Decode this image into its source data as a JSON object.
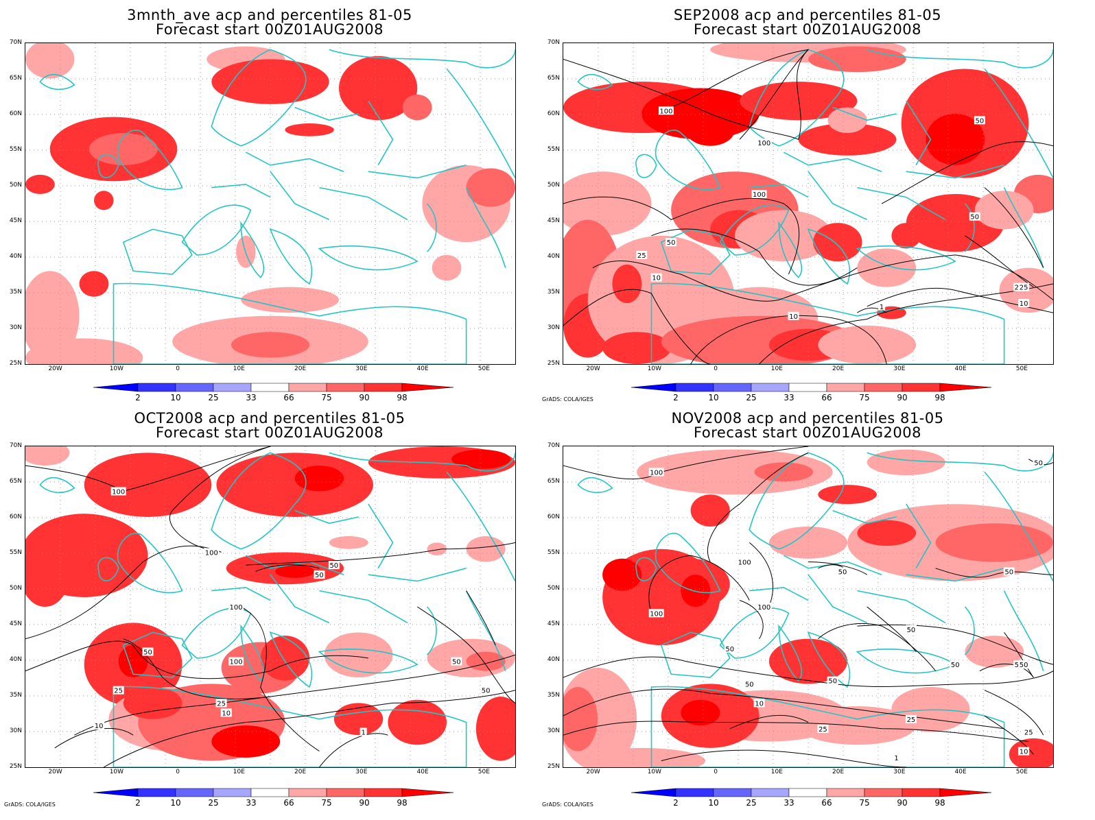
{
  "panels": [
    {
      "id": "p1",
      "title1": "3mnth_ave acp and percentiles 81-05",
      "title2": "Forecast start 00Z01AUG2008",
      "show_grads": false,
      "contours": false
    },
    {
      "id": "p2",
      "title1": "SEP2008 acp and percentiles 81-05",
      "title2": "Forecast start 00Z01AUG2008",
      "show_grads": true,
      "contours": true
    },
    {
      "id": "p3",
      "title1": "OCT2008 acp and percentiles 81-05",
      "title2": "Forecast start 00Z01AUG2008",
      "show_grads": true,
      "contours": true
    },
    {
      "id": "p4",
      "title1": "NOV2008 acp and percentiles 81-05",
      "title2": "Forecast start 00Z01AUG2008",
      "show_grads": true,
      "contours": true
    }
  ],
  "lat_labels": [
    "70N",
    "65N",
    "60N",
    "55N",
    "50N",
    "45N",
    "40N",
    "35N",
    "30N",
    "25N"
  ],
  "lon_labels": [
    "20W",
    "10W",
    "0",
    "10E",
    "20E",
    "30E",
    "40E",
    "50E"
  ],
  "colorbar_labels": [
    "2",
    "10",
    "25",
    "33",
    "66",
    "75",
    "90",
    "98"
  ],
  "colorbar_colors": [
    "#0000ff",
    "#3333ff",
    "#6666ff",
    "#a6a6ff",
    "#ffffff",
    "#ffa6a6",
    "#ff6666",
    "#ff3333",
    "#ff0000"
  ],
  "contour_labels": [
    "100",
    "50",
    "25",
    "10",
    "1"
  ],
  "grads_credit": "GrADS: COLA/IGES",
  "colors": {
    "coast": "#22c5c5",
    "contour": "#000000",
    "grid": "#9a9a9a"
  }
}
